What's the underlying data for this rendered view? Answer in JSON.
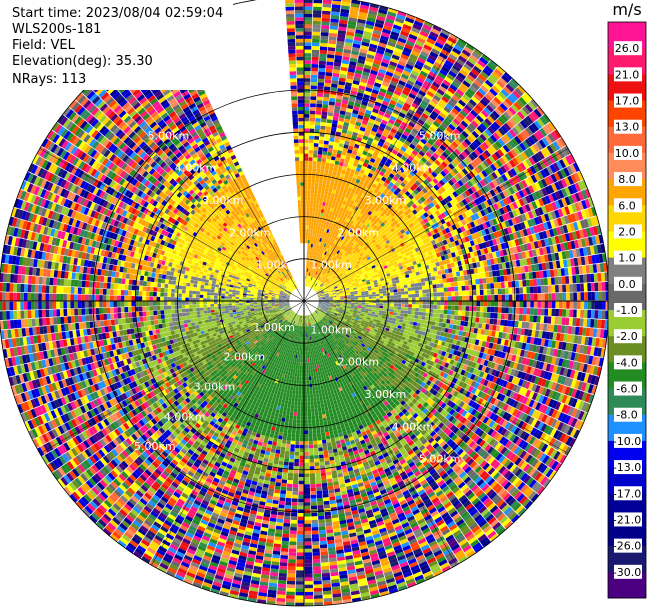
{
  "header": {
    "start_time": "Start time: 2023/08/04 02:59:04",
    "instrument": "WLS200s-181",
    "field": "Field: VEL",
    "elevation": "Elevation(deg): 35.30",
    "nrays": "NRays: 113"
  },
  "chart_data": {
    "type": "heatmap",
    "projection": "polar-ppi",
    "field": "VEL",
    "unit": "m/s",
    "range_rings_km": [
      1,
      2,
      3,
      4,
      5
    ],
    "range_labels": [
      "1.00km",
      "2.00km",
      "3.00km",
      "4.00km",
      "5.00km"
    ],
    "n_rays": 113,
    "gap_azimuth_deg": [
      335,
      357
    ],
    "colorbar": {
      "unit": "m/s",
      "ticks": [
        {
          "label": "26.0",
          "value": 26.0
        },
        {
          "label": "21.0",
          "value": 21.0
        },
        {
          "label": "17.0",
          "value": 17.0
        },
        {
          "label": "13.0",
          "value": 13.0
        },
        {
          "label": "10.0",
          "value": 10.0
        },
        {
          "label": "8.0",
          "value": 8.0
        },
        {
          "label": "6.0",
          "value": 6.0
        },
        {
          "label": "2.0",
          "value": 2.0
        },
        {
          "label": "1.0",
          "value": 1.0
        },
        {
          "label": "0.0",
          "value": 0.0
        },
        {
          "label": "-1.0",
          "value": -1.0
        },
        {
          "label": "-2.0",
          "value": -2.0
        },
        {
          "label": "-4.0",
          "value": -4.0
        },
        {
          "label": "-6.0",
          "value": -6.0
        },
        {
          "label": "-8.0",
          "value": -8.0
        },
        {
          "label": "-10.0",
          "value": -10.0
        },
        {
          "label": "-13.0",
          "value": -13.0
        },
        {
          "label": "-17.0",
          "value": -17.0
        },
        {
          "label": "-21.0",
          "value": -21.0
        },
        {
          "label": "-26.0",
          "value": -26.0
        },
        {
          "label": "-30.0",
          "value": -30.0
        }
      ],
      "colors": [
        "#ff1493",
        "#ff1a70",
        "#ee1111",
        "#ff4400",
        "#ff6a3a",
        "#ff8c5a",
        "#ffa500",
        "#ffd700",
        "#ffff00",
        "#808080",
        "#696969",
        "#9acd32",
        "#6b8e23",
        "#228b22",
        "#2e8b57",
        "#1e90ff",
        "#0000ee",
        "#0000cd",
        "#000099",
        "#00008b",
        "#191970",
        "#4b0082"
      ]
    }
  }
}
